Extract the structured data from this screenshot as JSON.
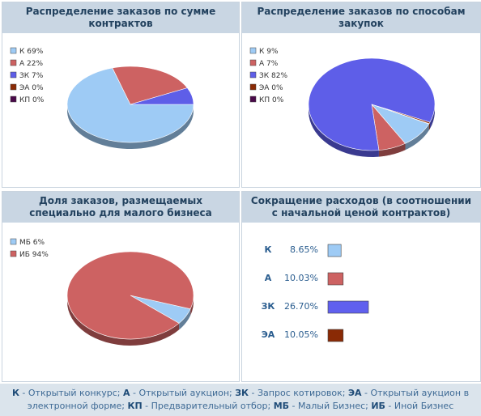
{
  "chart_data": [
    {
      "type": "pie",
      "title": "Распределение заказов по сумме контрактов",
      "legend": [
        "К 69%",
        "А 22%",
        "ЗК 7%",
        "ЭА 0%",
        "КП 0%"
      ],
      "series": [
        {
          "name": "К",
          "value": 69,
          "color": "#9ecbf5"
        },
        {
          "name": "А",
          "value": 22,
          "color": "#cd6262"
        },
        {
          "name": "ЗК",
          "value": 7,
          "color": "#5e5ee8"
        },
        {
          "name": "ЭА",
          "value": 0,
          "color": "#8a2a05"
        },
        {
          "name": "КП",
          "value": 0,
          "color": "#4a0a4a"
        }
      ],
      "legend_position": "top-left"
    },
    {
      "type": "pie",
      "title": "Распределение заказов по способам закупок",
      "legend": [
        "К 9%",
        "А 7%",
        "ЗК 82%",
        "ЭА 0%",
        "КП 0%"
      ],
      "series": [
        {
          "name": "К",
          "value": 9,
          "color": "#9ecbf5"
        },
        {
          "name": "А",
          "value": 7,
          "color": "#cd6262"
        },
        {
          "name": "ЗК",
          "value": 82,
          "color": "#5e5ee8"
        },
        {
          "name": "ЭА",
          "value": 0.5,
          "color": "#8a2a05"
        },
        {
          "name": "КП",
          "value": 0.1,
          "color": "#4a0a4a"
        }
      ],
      "legend_position": "top-left"
    },
    {
      "type": "pie",
      "title": "Доля заказов, размещаемых специально для малого бизнеса",
      "legend": [
        "МБ 6%",
        "ИБ 94%"
      ],
      "series": [
        {
          "name": "МБ",
          "value": 6,
          "color": "#9ecbf5"
        },
        {
          "name": "ИБ",
          "value": 94,
          "color": "#cd6262"
        }
      ],
      "legend_position": "top-left"
    },
    {
      "type": "bar",
      "title": "Сокращение расходов (в соотношении с начальной ценой контрактов)",
      "categories": [
        "К",
        "А",
        "ЗК",
        "ЭА"
      ],
      "labels": [
        "8.65%",
        "10.03%",
        "26.70%",
        "10.05%"
      ],
      "values": [
        8.65,
        10.03,
        26.7,
        10.05
      ],
      "colors": [
        "#9ecbf5",
        "#cd6262",
        "#6060ee",
        "#8a2a05"
      ]
    }
  ],
  "footer": {
    "text": "К - Открытый конкурс; А - Открытый аукцион; ЗК - Запрос котировок; ЭА - Открытый аукцион в электронной форме; КП - Предварительный отбор; МБ - Малый Бизнес; ИБ - Иной Бизнес"
  }
}
